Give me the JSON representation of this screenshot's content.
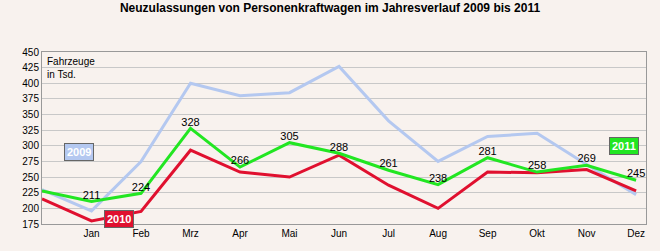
{
  "chart_data": {
    "type": "line",
    "title": "Neuzulassungen von Personenkraftwagen im Jahresverlauf 2009 bis 2011",
    "y_label": "Fahrzeuge in Tsd.",
    "categories": [
      null,
      "Jan",
      "Feb",
      "Mrz",
      "Apr",
      "Mai",
      "Jun",
      "Jul",
      "Aug",
      "Sep",
      "Okt",
      "Nov",
      "Dez"
    ],
    "series": [
      {
        "name": "2009",
        "color": "#b4c8f0",
        "values": [
          230,
          196,
          275,
          400,
          380,
          385,
          427,
          340,
          275,
          315,
          320,
          270,
          222
        ]
      },
      {
        "name": "2010",
        "color": "#e0102f",
        "values": [
          215,
          180,
          195,
          293,
          258,
          250,
          285,
          237,
          200,
          258,
          257,
          262,
          228
        ]
      },
      {
        "name": "2011",
        "color": "#22e622",
        "data_labels": true,
        "values": [
          228,
          211,
          224,
          328,
          266,
          305,
          288,
          261,
          238,
          281,
          258,
          269,
          245
        ]
      }
    ],
    "ylim": [
      175,
      450
    ],
    "yticks": [
      175,
      200,
      225,
      250,
      275,
      300,
      325,
      350,
      375,
      400,
      425,
      450
    ],
    "grid": true
  }
}
